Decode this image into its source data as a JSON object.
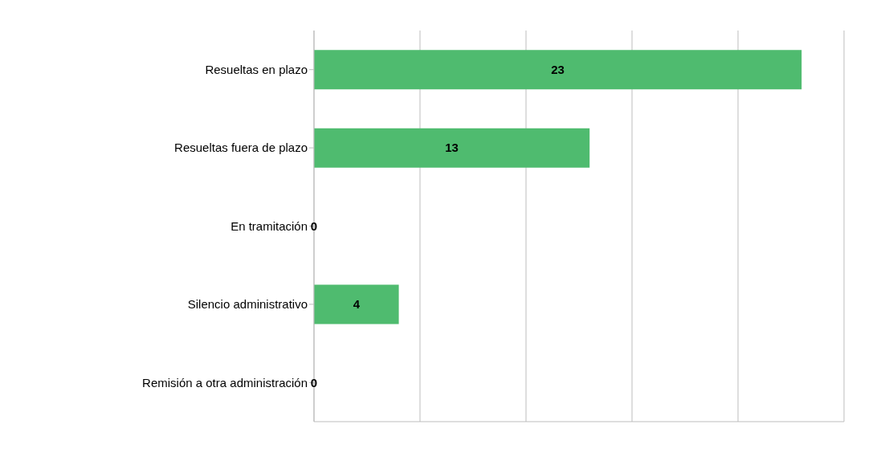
{
  "chart_data": {
    "type": "bar",
    "orientation": "horizontal",
    "categories": [
      "Resueltas en plazo",
      "Resueltas fuera de plazo",
      "En tramitación",
      "Silencio administrativo",
      "Remisión a otra administración"
    ],
    "values": [
      23,
      13,
      0,
      4,
      0
    ],
    "color": "#4fbb6f",
    "grid": "x",
    "tick_labels": "y",
    "data_labels": true
  }
}
